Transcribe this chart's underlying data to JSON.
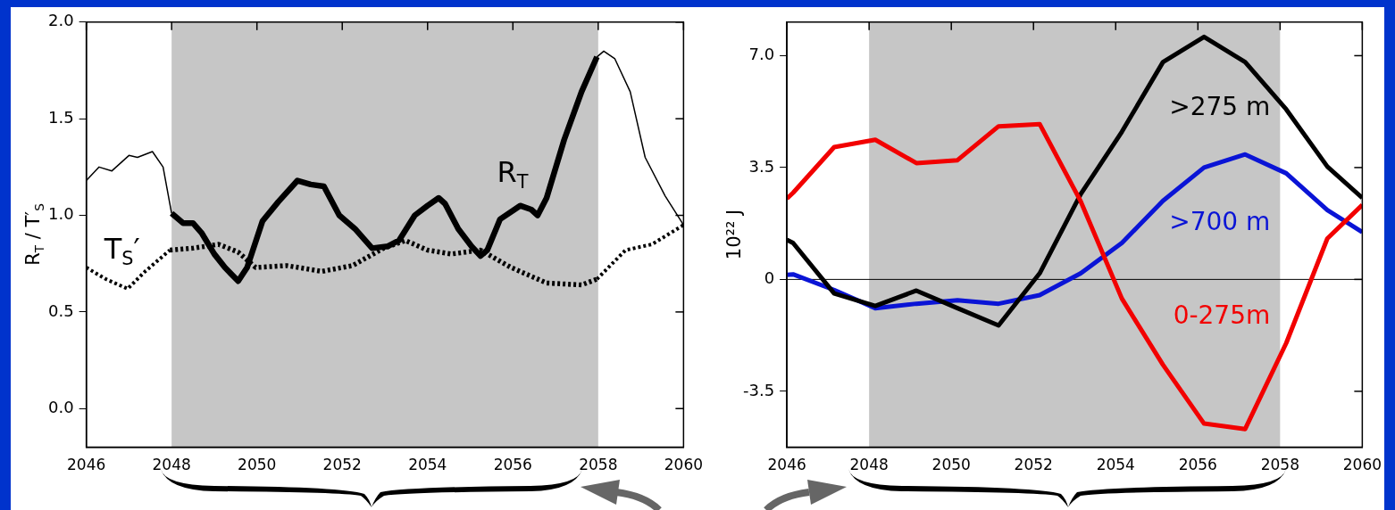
{
  "chart_data": [
    {
      "type": "line",
      "ylabel": "R$_{T}$ / T′$_{S}$",
      "xlim": [
        2046,
        2060
      ],
      "ylim": [
        -0.2,
        2.0
      ],
      "xticks": [
        2046,
        2048,
        2050,
        2052,
        2054,
        2056,
        2058,
        2060
      ],
      "yticks": [
        {
          "value": 0,
          "label": "0.0"
        },
        {
          "value": 0.5,
          "label": "0.5"
        },
        {
          "value": 1,
          "label": "1.0"
        },
        {
          "value": 1.5,
          "label": "1.5"
        },
        {
          "value": 2,
          "label": "2.0"
        }
      ],
      "bands": [
        {
          "axis": "x",
          "from": 2048,
          "to": 2058,
          "color": "#c6c6c6"
        }
      ],
      "series": [
        {
          "name": "R$_{T}$",
          "color": "#000000",
          "line_style": "solid",
          "x": [
            2046,
            2046.3,
            2046.6,
            2047,
            2047.2,
            2047.55,
            2047.8,
            2048,
            2048.27,
            2048.5,
            2048.7,
            2049,
            2049.25,
            2049.56,
            2049.77,
            2050.13,
            2050.5,
            2050.95,
            2051.26,
            2051.57,
            2051.93,
            2052.3,
            2052.7,
            2053.07,
            2053.33,
            2053.7,
            2054,
            2054.26,
            2054.41,
            2054.72,
            2055.03,
            2055.24,
            2055.4,
            2055.7,
            2056.17,
            2056.43,
            2056.58,
            2056.79,
            2057.2,
            2057.61,
            2057.97,
            2058.13,
            2058.39,
            2058.75,
            2059.1,
            2059.57,
            2060
          ],
          "values": [
            1.18,
            1.25,
            1.23,
            1.31,
            1.3,
            1.33,
            1.25,
            1.01,
            0.96,
            0.96,
            0.91,
            0.8,
            0.73,
            0.66,
            0.73,
            0.97,
            1.07,
            1.18,
            1.16,
            1.15,
            1.0,
            0.93,
            0.83,
            0.84,
            0.87,
            1.0,
            1.05,
            1.09,
            1.06,
            0.93,
            0.84,
            0.79,
            0.82,
            0.98,
            1.05,
            1.03,
            1.0,
            1.09,
            1.39,
            1.64,
            1.82,
            1.85,
            1.81,
            1.64,
            1.3,
            1.1,
            0.95
          ]
        },
        {
          "name": "T$_{S}$′",
          "color": "#000000",
          "line_style": "dotted",
          "x": [
            2046,
            2046.46,
            2046.97,
            2047.38,
            2047.96,
            2048.5,
            2049.1,
            2049.56,
            2049.97,
            2050.7,
            2051.52,
            2052.24,
            2052.97,
            2053.48,
            2054,
            2054.56,
            2055.24,
            2055.96,
            2056.79,
            2057.61,
            2057.97,
            2058.64,
            2059.26,
            2060
          ],
          "values": [
            0.73,
            0.67,
            0.62,
            0.71,
            0.82,
            0.83,
            0.85,
            0.81,
            0.73,
            0.74,
            0.71,
            0.74,
            0.83,
            0.87,
            0.82,
            0.8,
            0.82,
            0.73,
            0.65,
            0.64,
            0.67,
            0.82,
            0.85,
            0.95
          ]
        }
      ]
    },
    {
      "type": "line",
      "ylabel": "10²² J",
      "xlim": [
        2046,
        2060
      ],
      "ylim": [
        -5.25,
        8.05
      ],
      "xticks": [
        2046,
        2048,
        2050,
        2052,
        2054,
        2056,
        2058,
        2060
      ],
      "yticks": [
        {
          "value": -3.5,
          "label": "-3.5"
        },
        0,
        {
          "value": 3.5,
          "label": "3.5"
        },
        {
          "value": 7,
          "label": "7.0"
        }
      ],
      "bands": [
        {
          "axis": "x",
          "from": 2048,
          "to": 2058,
          "color": "#c6c6c6"
        }
      ],
      "ref_lines": [
        {
          "axis": "y",
          "value": 0,
          "color": "#000000"
        }
      ],
      "x": [
        2046,
        2046.15,
        2047.15,
        2048.15,
        2049.15,
        2050.15,
        2051.15,
        2052.15,
        2053.15,
        2054.15,
        2055.15,
        2056.15,
        2057.15,
        2058.15,
        2059.15,
        2060
      ],
      "series": [
        {
          "name": "0-275m",
          "color": "#f20000",
          "line_style": "solid",
          "values": [
            2.53,
            2.71,
            4.14,
            4.37,
            3.64,
            3.73,
            4.79,
            4.86,
            2.44,
            -0.6,
            -2.67,
            -4.51,
            -4.68,
            -1.99,
            1.28,
            2.33
          ]
        },
        {
          "name": ">275 m",
          "color": "#000000",
          "line_style": "solid",
          "values": [
            1.24,
            1.14,
            -0.44,
            -0.83,
            -0.35,
            -0.9,
            -1.44,
            0.19,
            2.67,
            4.62,
            6.8,
            7.59,
            6.8,
            5.32,
            3.53,
            2.55
          ]
        },
        {
          "name": ">700 m",
          "color": "#0a14d6",
          "line_style": "solid",
          "values": [
            0.14,
            0.16,
            -0.33,
            -0.9,
            -0.76,
            -0.65,
            -0.76,
            -0.49,
            0.19,
            1.14,
            2.46,
            3.5,
            3.91,
            3.32,
            2.17,
            1.48
          ]
        }
      ]
    }
  ]
}
